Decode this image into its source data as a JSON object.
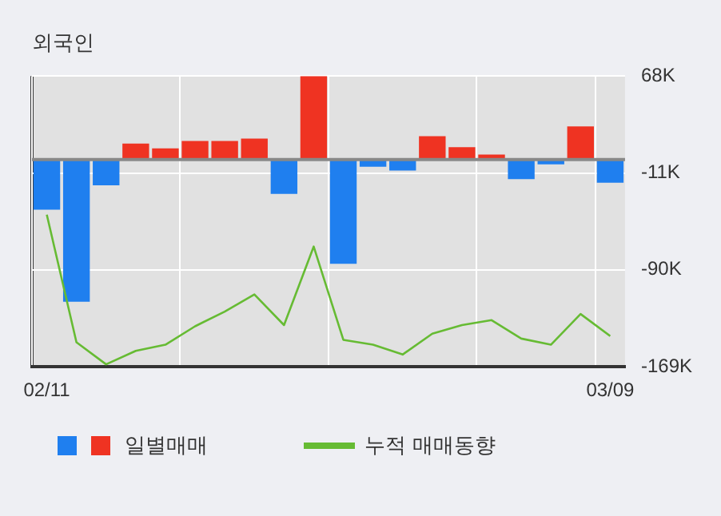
{
  "chart_data": {
    "type": "bar",
    "title": "외국인",
    "categories": [
      "02/11",
      null,
      null,
      null,
      null,
      null,
      null,
      null,
      null,
      null,
      null,
      null,
      null,
      null,
      null,
      null,
      null,
      null,
      null,
      "03/09"
    ],
    "series": [
      {
        "name": "일별매매",
        "colors": [
          "#1f7fef",
          "#1f7fef",
          "#1f7fef",
          "#ef3322",
          "#ef3322",
          "#ef3322",
          "#ef3322",
          "#ef3322",
          "#1f7fef",
          "#ef3322",
          "#1f7fef",
          "#1f7fef",
          "#1f7fef",
          "#ef3322",
          "#ef3322",
          "#ef3322",
          "#1f7fef",
          "#1f7fef",
          "#ef3322",
          "#1f7fef"
        ],
        "values": [
          -41,
          -116,
          -21,
          13,
          9,
          15,
          15,
          17,
          -28,
          68,
          -85,
          -6,
          -9,
          19,
          10,
          4,
          -16,
          -4,
          27,
          -19
        ]
      },
      {
        "name": "누적 매매동향",
        "type": "line",
        "color": "#66bb33",
        "values": [
          -45,
          -149,
          -167,
          -156,
          -151,
          -136,
          -124,
          -110,
          -135,
          -71,
          -147,
          -151,
          -159,
          -142,
          -135,
          -131,
          -146,
          -151,
          -126,
          -144
        ]
      }
    ],
    "ylim": [
      -169,
      68
    ],
    "yticks": [
      {
        "value": 68,
        "label": "68K"
      },
      {
        "value": -11,
        "label": "-11K"
      },
      {
        "value": -90,
        "label": "-90K"
      },
      {
        "value": -169,
        "label": "-169K"
      }
    ],
    "grid": true,
    "legend": "bottom",
    "marker": "none"
  }
}
